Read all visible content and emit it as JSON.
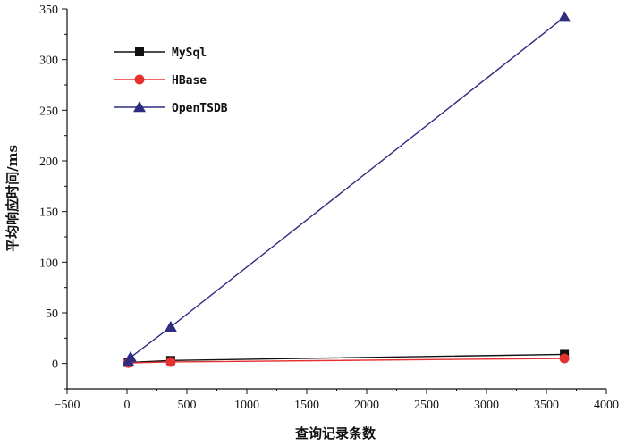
{
  "chart_data": {
    "type": "line",
    "xlabel": "查询记录条数",
    "ylabel": "平均响应时间/ms",
    "xlim": [
      -500,
      4000
    ],
    "ylim": [
      -25,
      350
    ],
    "xticks": [
      -500,
      0,
      500,
      1000,
      1500,
      2000,
      2500,
      3000,
      3500,
      4000
    ],
    "yticks": [
      0,
      50,
      100,
      150,
      200,
      250,
      300,
      350
    ],
    "grid": false,
    "legend_position": "top-left",
    "series": [
      {
        "name": "MySql",
        "color": "#111111",
        "marker": "square",
        "x": [
          10,
          365,
          3650
        ],
        "y": [
          1,
          3,
          9
        ]
      },
      {
        "name": "HBase",
        "color": "#e53030",
        "marker": "circle",
        "x": [
          10,
          365,
          3650
        ],
        "y": [
          0.5,
          1.5,
          5
        ]
      },
      {
        "name": "OpenTSDB",
        "color": "#2e2d80",
        "marker": "triangle",
        "x": [
          10,
          30,
          365,
          3650
        ],
        "y": [
          2,
          6,
          36,
          342
        ]
      }
    ]
  }
}
